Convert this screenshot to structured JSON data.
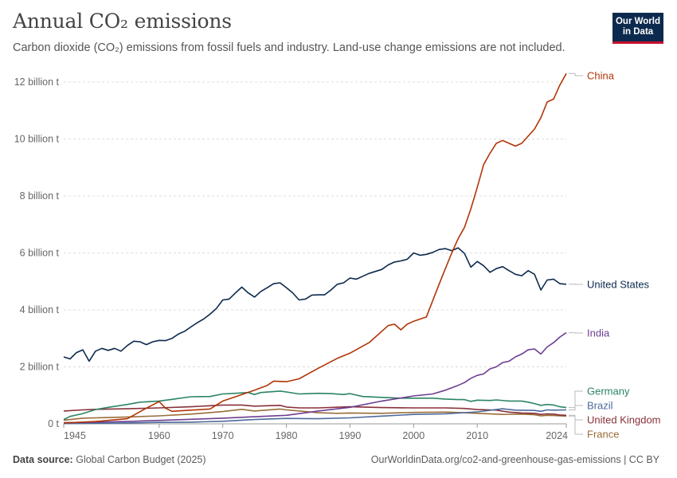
{
  "header": {
    "title": "Annual CO₂ emissions",
    "subtitle": "Carbon dioxide (CO₂) emissions from fossil fuels and industry. Land-use change emissions are not included.",
    "logo_line1": "Our World",
    "logo_line2": "in Data"
  },
  "footer": {
    "source_label": "Data source:",
    "source_value": "Global Carbon Budget (2025)",
    "url": "OurWorldinData.org/co2-and-greenhouse-gas-emissions | CC BY"
  },
  "chart_data": {
    "type": "line",
    "title": "Annual CO₂ emissions",
    "xlabel": "",
    "ylabel": "",
    "xlim": [
      1945,
      2024
    ],
    "ylim": [
      0,
      12500000000
    ],
    "grid": "horizontal dashed",
    "legend": "inline labels at right end of lines",
    "x_ticks": [
      1945,
      1960,
      1970,
      1980,
      1990,
      2000,
      2010,
      2024
    ],
    "y_ticks": [
      {
        "value": 0,
        "label": "0 t"
      },
      {
        "value": 2000000000,
        "label": "2 billion t"
      },
      {
        "value": 4000000000,
        "label": "4 billion t"
      },
      {
        "value": 6000000000,
        "label": "6 billion t"
      },
      {
        "value": 8000000000,
        "label": "8 billion t"
      },
      {
        "value": 10000000000,
        "label": "10 billion t"
      },
      {
        "value": 12000000000,
        "label": "12 billion t"
      }
    ],
    "series": [
      {
        "name": "China",
        "color": "#b13507",
        "points": [
          [
            1945,
            0.03
          ],
          [
            1950,
            0.08
          ],
          [
            1955,
            0.18
          ],
          [
            1958,
            0.55
          ],
          [
            1960,
            0.78
          ],
          [
            1961,
            0.55
          ],
          [
            1962,
            0.44
          ],
          [
            1965,
            0.48
          ],
          [
            1968,
            0.52
          ],
          [
            1970,
            0.8
          ],
          [
            1972,
            0.95
          ],
          [
            1975,
            1.18
          ],
          [
            1977,
            1.35
          ],
          [
            1978,
            1.5
          ],
          [
            1980,
            1.48
          ],
          [
            1982,
            1.58
          ],
          [
            1985,
            1.95
          ],
          [
            1988,
            2.3
          ],
          [
            1990,
            2.48
          ],
          [
            1993,
            2.85
          ],
          [
            1996,
            3.45
          ],
          [
            1997,
            3.5
          ],
          [
            1998,
            3.3
          ],
          [
            1999,
            3.5
          ],
          [
            2000,
            3.6
          ],
          [
            2002,
            3.75
          ],
          [
            2004,
            4.9
          ],
          [
            2005,
            5.45
          ],
          [
            2006,
            6.0
          ],
          [
            2007,
            6.5
          ],
          [
            2008,
            6.9
          ],
          [
            2009,
            7.55
          ],
          [
            2010,
            8.3
          ],
          [
            2011,
            9.1
          ],
          [
            2012,
            9.5
          ],
          [
            2013,
            9.85
          ],
          [
            2014,
            9.95
          ],
          [
            2015,
            9.85
          ],
          [
            2016,
            9.75
          ],
          [
            2017,
            9.85
          ],
          [
            2018,
            10.1
          ],
          [
            2019,
            10.35
          ],
          [
            2020,
            10.75
          ],
          [
            2021,
            11.3
          ],
          [
            2022,
            11.4
          ],
          [
            2023,
            11.9
          ],
          [
            2024,
            12.3
          ]
        ]
      },
      {
        "name": "United States",
        "color": "#0c2a4d",
        "points": [
          [
            1945,
            2.35
          ],
          [
            1946,
            2.28
          ],
          [
            1947,
            2.5
          ],
          [
            1948,
            2.6
          ],
          [
            1949,
            2.2
          ],
          [
            1950,
            2.55
          ],
          [
            1951,
            2.65
          ],
          [
            1952,
            2.58
          ],
          [
            1953,
            2.65
          ],
          [
            1954,
            2.55
          ],
          [
            1955,
            2.75
          ],
          [
            1956,
            2.9
          ],
          [
            1957,
            2.88
          ],
          [
            1958,
            2.78
          ],
          [
            1959,
            2.88
          ],
          [
            1960,
            2.93
          ],
          [
            1961,
            2.92
          ],
          [
            1962,
            3.0
          ],
          [
            1963,
            3.15
          ],
          [
            1964,
            3.25
          ],
          [
            1965,
            3.4
          ],
          [
            1966,
            3.55
          ],
          [
            1967,
            3.68
          ],
          [
            1968,
            3.85
          ],
          [
            1969,
            4.05
          ],
          [
            1970,
            4.35
          ],
          [
            1971,
            4.38
          ],
          [
            1972,
            4.6
          ],
          [
            1973,
            4.8
          ],
          [
            1974,
            4.6
          ],
          [
            1975,
            4.45
          ],
          [
            1976,
            4.65
          ],
          [
            1977,
            4.78
          ],
          [
            1978,
            4.92
          ],
          [
            1979,
            4.95
          ],
          [
            1980,
            4.78
          ],
          [
            1981,
            4.6
          ],
          [
            1982,
            4.35
          ],
          [
            1983,
            4.38
          ],
          [
            1984,
            4.52
          ],
          [
            1985,
            4.53
          ],
          [
            1986,
            4.53
          ],
          [
            1987,
            4.7
          ],
          [
            1988,
            4.9
          ],
          [
            1989,
            4.95
          ],
          [
            1990,
            5.12
          ],
          [
            1991,
            5.08
          ],
          [
            1992,
            5.18
          ],
          [
            1993,
            5.28
          ],
          [
            1994,
            5.35
          ],
          [
            1995,
            5.42
          ],
          [
            1996,
            5.58
          ],
          [
            1997,
            5.68
          ],
          [
            1998,
            5.72
          ],
          [
            1999,
            5.78
          ],
          [
            2000,
            6.0
          ],
          [
            2001,
            5.92
          ],
          [
            2002,
            5.95
          ],
          [
            2003,
            6.02
          ],
          [
            2004,
            6.12
          ],
          [
            2005,
            6.15
          ],
          [
            2006,
            6.08
          ],
          [
            2007,
            6.18
          ],
          [
            2008,
            5.98
          ],
          [
            2009,
            5.5
          ],
          [
            2010,
            5.7
          ],
          [
            2011,
            5.55
          ],
          [
            2012,
            5.32
          ],
          [
            2013,
            5.45
          ],
          [
            2014,
            5.52
          ],
          [
            2015,
            5.38
          ],
          [
            2016,
            5.25
          ],
          [
            2017,
            5.2
          ],
          [
            2018,
            5.38
          ],
          [
            2019,
            5.25
          ],
          [
            2020,
            4.7
          ],
          [
            2021,
            5.05
          ],
          [
            2022,
            5.08
          ],
          [
            2023,
            4.92
          ],
          [
            2024,
            4.9
          ]
        ]
      },
      {
        "name": "India",
        "color": "#6d3e91",
        "points": [
          [
            1945,
            0.04
          ],
          [
            1950,
            0.06
          ],
          [
            1955,
            0.08
          ],
          [
            1960,
            0.12
          ],
          [
            1965,
            0.16
          ],
          [
            1970,
            0.2
          ],
          [
            1975,
            0.25
          ],
          [
            1980,
            0.3
          ],
          [
            1985,
            0.45
          ],
          [
            1990,
            0.58
          ],
          [
            1995,
            0.8
          ],
          [
            2000,
            0.98
          ],
          [
            2003,
            1.05
          ],
          [
            2005,
            1.18
          ],
          [
            2007,
            1.35
          ],
          [
            2008,
            1.45
          ],
          [
            2009,
            1.6
          ],
          [
            2010,
            1.7
          ],
          [
            2011,
            1.75
          ],
          [
            2012,
            1.93
          ],
          [
            2013,
            2.0
          ],
          [
            2014,
            2.15
          ],
          [
            2015,
            2.2
          ],
          [
            2016,
            2.35
          ],
          [
            2017,
            2.45
          ],
          [
            2018,
            2.6
          ],
          [
            2019,
            2.63
          ],
          [
            2020,
            2.45
          ],
          [
            2021,
            2.7
          ],
          [
            2022,
            2.85
          ],
          [
            2023,
            3.05
          ],
          [
            2024,
            3.2
          ]
        ]
      },
      {
        "name": "Germany",
        "color": "#2c8465",
        "points": [
          [
            1945,
            0.15
          ],
          [
            1946,
            0.26
          ],
          [
            1948,
            0.36
          ],
          [
            1950,
            0.5
          ],
          [
            1952,
            0.58
          ],
          [
            1955,
            0.68
          ],
          [
            1957,
            0.76
          ],
          [
            1960,
            0.8
          ],
          [
            1962,
            0.86
          ],
          [
            1965,
            0.95
          ],
          [
            1968,
            0.96
          ],
          [
            1970,
            1.05
          ],
          [
            1972,
            1.07
          ],
          [
            1974,
            1.1
          ],
          [
            1975,
            1.03
          ],
          [
            1976,
            1.1
          ],
          [
            1979,
            1.15
          ],
          [
            1980,
            1.12
          ],
          [
            1982,
            1.05
          ],
          [
            1985,
            1.07
          ],
          [
            1987,
            1.06
          ],
          [
            1989,
            1.03
          ],
          [
            1990,
            1.06
          ],
          [
            1992,
            0.96
          ],
          [
            1995,
            0.93
          ],
          [
            1998,
            0.9
          ],
          [
            2000,
            0.9
          ],
          [
            2003,
            0.9
          ],
          [
            2005,
            0.87
          ],
          [
            2007,
            0.85
          ],
          [
            2008,
            0.85
          ],
          [
            2009,
            0.79
          ],
          [
            2010,
            0.83
          ],
          [
            2012,
            0.82
          ],
          [
            2013,
            0.84
          ],
          [
            2015,
            0.8
          ],
          [
            2017,
            0.8
          ],
          [
            2018,
            0.76
          ],
          [
            2019,
            0.71
          ],
          [
            2020,
            0.65
          ],
          [
            2021,
            0.68
          ],
          [
            2022,
            0.66
          ],
          [
            2023,
            0.6
          ],
          [
            2024,
            0.57
          ]
        ]
      },
      {
        "name": "Brazil",
        "color": "#4c6a9c",
        "points": [
          [
            1945,
            0.01
          ],
          [
            1950,
            0.02
          ],
          [
            1955,
            0.03
          ],
          [
            1960,
            0.05
          ],
          [
            1965,
            0.06
          ],
          [
            1970,
            0.09
          ],
          [
            1975,
            0.15
          ],
          [
            1980,
            0.19
          ],
          [
            1985,
            0.18
          ],
          [
            1990,
            0.21
          ],
          [
            1995,
            0.27
          ],
          [
            2000,
            0.33
          ],
          [
            2005,
            0.35
          ],
          [
            2010,
            0.42
          ],
          [
            2014,
            0.53
          ],
          [
            2016,
            0.48
          ],
          [
            2019,
            0.47
          ],
          [
            2020,
            0.44
          ],
          [
            2021,
            0.49
          ],
          [
            2022,
            0.48
          ],
          [
            2024,
            0.49
          ]
        ]
      },
      {
        "name": "United Kingdom",
        "color": "#883039",
        "points": [
          [
            1945,
            0.45
          ],
          [
            1948,
            0.49
          ],
          [
            1950,
            0.51
          ],
          [
            1955,
            0.53
          ],
          [
            1960,
            0.56
          ],
          [
            1965,
            0.6
          ],
          [
            1970,
            0.66
          ],
          [
            1973,
            0.66
          ],
          [
            1975,
            0.62
          ],
          [
            1979,
            0.65
          ],
          [
            1980,
            0.59
          ],
          [
            1982,
            0.56
          ],
          [
            1985,
            0.56
          ],
          [
            1990,
            0.6
          ],
          [
            1995,
            0.57
          ],
          [
            2000,
            0.56
          ],
          [
            2005,
            0.56
          ],
          [
            2008,
            0.54
          ],
          [
            2010,
            0.5
          ],
          [
            2012,
            0.49
          ],
          [
            2013,
            0.48
          ],
          [
            2015,
            0.41
          ],
          [
            2017,
            0.38
          ],
          [
            2019,
            0.37
          ],
          [
            2020,
            0.33
          ],
          [
            2021,
            0.35
          ],
          [
            2022,
            0.34
          ],
          [
            2023,
            0.31
          ],
          [
            2024,
            0.3
          ]
        ]
      },
      {
        "name": "France",
        "color": "#996d39",
        "points": [
          [
            1945,
            0.13
          ],
          [
            1948,
            0.2
          ],
          [
            1950,
            0.21
          ],
          [
            1955,
            0.24
          ],
          [
            1960,
            0.28
          ],
          [
            1965,
            0.34
          ],
          [
            1970,
            0.43
          ],
          [
            1973,
            0.51
          ],
          [
            1975,
            0.45
          ],
          [
            1979,
            0.52
          ],
          [
            1980,
            0.49
          ],
          [
            1983,
            0.43
          ],
          [
            1985,
            0.39
          ],
          [
            1988,
            0.37
          ],
          [
            1990,
            0.38
          ],
          [
            1995,
            0.37
          ],
          [
            2000,
            0.4
          ],
          [
            2005,
            0.41
          ],
          [
            2008,
            0.39
          ],
          [
            2010,
            0.37
          ],
          [
            2014,
            0.33
          ],
          [
            2017,
            0.34
          ],
          [
            2019,
            0.32
          ],
          [
            2020,
            0.28
          ],
          [
            2021,
            0.3
          ],
          [
            2022,
            0.29
          ],
          [
            2024,
            0.27
          ]
        ]
      }
    ],
    "label_order": [
      "China",
      "United States",
      "India",
      "Germany",
      "Brazil",
      "United Kingdom",
      "France"
    ]
  }
}
